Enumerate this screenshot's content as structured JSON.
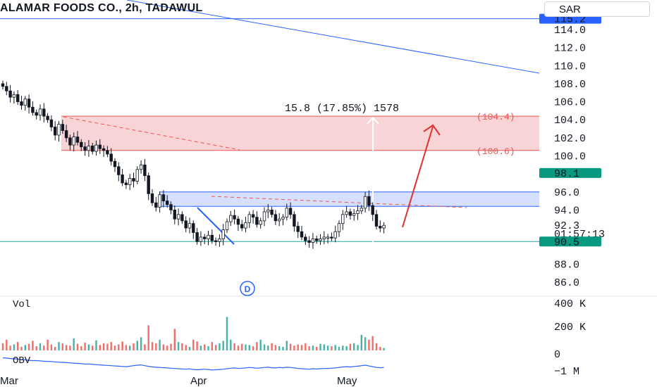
{
  "header": {
    "title": "ALAMAR FOODS CO., 2h, TADAWUL",
    "currency": "SAR"
  },
  "colors": {
    "up": "#26a69a",
    "down": "#ef5350",
    "trendline": "#2962ff",
    "price_label": "#2962ff",
    "current_price_label": "#089981",
    "target_box": "#f7c5c8",
    "support_box": "#cfd9fb",
    "arrow": "#e03030"
  },
  "chart_data": [
    {
      "type": "candlestick",
      "title": "ALAMAR FOODS CO., 2h, TADAWUL",
      "yaxis_ticks": [
        "114.0",
        "112.0",
        "110.0",
        "108.0",
        "106.0",
        "104.0",
        "102.0",
        "100.0",
        "96.0",
        "94.0",
        "88.0",
        "86.0"
      ],
      "ylim": [
        85.0,
        116.5
      ],
      "xaxis_labels": [
        "Mar",
        "Apr",
        "May"
      ],
      "price_labels": {
        "upper_line": "115.2",
        "current_close": "98.1",
        "lower_line": "90.5",
        "last_price": "92.3",
        "countdown": "01:57:13"
      },
      "box_labels": {
        "upper": "(104.4)",
        "lower": "(100.6)"
      },
      "measure_label": "15.8 (17.85%) 1578",
      "event_marker": "D",
      "target_zone": [
        100.6,
        104.4
      ],
      "support_zone": [
        94.4,
        96.0
      ],
      "series": [
        {
          "name": "",
          "values": [
            107.7,
            107.2,
            106.5,
            106.8,
            106.0,
            105.6,
            106.3,
            105.4,
            104.8,
            104.5,
            105.2,
            104.4,
            104.0,
            103.2,
            102.3,
            103.5,
            102.8,
            102.0,
            101.2,
            102.1,
            101.5,
            101.0,
            100.6,
            101.1,
            100.5,
            101.2,
            100.8,
            100.6,
            100.2,
            99.4,
            98.8,
            97.9,
            97.0,
            96.8,
            97.5,
            97.2,
            98.5,
            99.0,
            97.8,
            95.8,
            94.8,
            94.3,
            95.7,
            95.0,
            94.6,
            94.0,
            93.0,
            93.5,
            92.8,
            92.0,
            92.5,
            91.5,
            90.5,
            91.0,
            90.8,
            91.2,
            90.6,
            90.5,
            90.8,
            91.8,
            92.7,
            93.4,
            93.0,
            92.4,
            92.0,
            92.6,
            93.5,
            93.2,
            92.4,
            92.8,
            93.8,
            94.0,
            93.5,
            92.8,
            93.0,
            93.2,
            94.2,
            93.5,
            92.2,
            91.6,
            91.0,
            90.6,
            90.4,
            90.8,
            90.6,
            90.8,
            91.0,
            91.0,
            90.9,
            91.6,
            92.5,
            93.5,
            93.8,
            93.4,
            93.6,
            93.9,
            94.2,
            95.5,
            94.5,
            93.5,
            92.2,
            92.0,
            92.3
          ]
        }
      ]
    },
    {
      "type": "bar",
      "title": "Vol",
      "yaxis_ticks": [
        "400 K",
        "200 K",
        "0"
      ],
      "ylim": [
        0,
        400000
      ],
      "series": [
        {
          "name": "",
          "values": [
            60000,
            90000,
            40000,
            50000,
            70000,
            30000,
            45000,
            55000,
            80000,
            35000,
            60000,
            40000,
            90000,
            50000,
            30000,
            70000,
            60000,
            45000,
            40000,
            100000,
            55000,
            35000,
            65000,
            50000,
            40000,
            85000,
            45000,
            60000,
            55000,
            70000,
            40000,
            50000,
            75000,
            45000,
            40000,
            60000,
            80000,
            110000,
            50000,
            210000,
            70000,
            60000,
            90000,
            50000,
            40000,
            55000,
            180000,
            70000,
            60000,
            45000,
            30000,
            90000,
            75000,
            40000,
            50000,
            35000,
            70000,
            45000,
            60000,
            80000,
            280000,
            90000,
            60000,
            40000,
            55000,
            50000,
            45000,
            35000,
            70000,
            90000,
            50000,
            40000,
            60000,
            45000,
            35000,
            30000,
            80000,
            55000,
            40000,
            50000,
            45000,
            60000,
            35000,
            40000,
            30000,
            55000,
            50000,
            40000,
            35000,
            45000,
            30000,
            40000,
            35000,
            55000,
            60000,
            45000,
            130000,
            110000,
            90000,
            120000,
            60000,
            30000,
            20000
          ]
        }
      ]
    },
    {
      "type": "line",
      "title": "OBV",
      "yaxis_ticks": [
        "−1 M"
      ],
      "series": [
        {
          "name": "",
          "values": [
            -0.28,
            -0.3,
            -0.34,
            -0.36,
            -0.38,
            -0.42,
            -0.44,
            -0.48,
            -0.5,
            -0.5,
            -0.52,
            -0.55,
            -0.56,
            -0.57,
            -0.6,
            -0.62,
            -0.64,
            -0.66,
            -0.68,
            -0.7,
            -0.72,
            -0.74,
            -0.78,
            -0.76,
            -0.8,
            -0.82,
            -0.84,
            -0.86,
            -0.88,
            -0.9,
            -0.92,
            -0.94,
            -0.96,
            -0.98,
            -0.94,
            -0.9,
            -0.86,
            -0.84,
            -0.9,
            -0.95,
            -1.0,
            -1.02,
            -1.04,
            -1.06,
            -1.08,
            -1.1,
            -1.12,
            -1.14,
            -1.16,
            -1.18,
            -1.15,
            -1.2,
            -1.22,
            -1.2,
            -1.18,
            -1.2,
            -1.24,
            -1.22,
            -1.2,
            -1.18,
            -1.14,
            -1.1,
            -1.08,
            -1.12,
            -1.1,
            -1.08,
            -1.04,
            -1.06,
            -1.1,
            -1.08,
            -1.04,
            -1.02,
            -1.06,
            -1.08,
            -1.04,
            -1.06,
            -1.02,
            -1.04,
            -1.08,
            -1.12,
            -1.14,
            -1.16,
            -1.18,
            -1.14,
            -1.16,
            -1.14,
            -1.12,
            -1.12,
            -1.1,
            -1.08,
            -1.04,
            -1.0,
            -0.98,
            -1.0,
            -0.96,
            -0.94,
            -0.9,
            -0.86,
            -0.92,
            -0.98,
            -1.04,
            -1.06,
            -1.04
          ]
        }
      ]
    }
  ]
}
